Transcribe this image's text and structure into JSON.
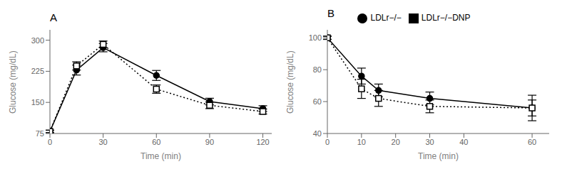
{
  "chart_data": [
    {
      "type": "line",
      "title": "A",
      "x_label": "Time (min)",
      "y_label": "Glucose (mg/dL)",
      "x": [
        0,
        15,
        30,
        60,
        90,
        120
      ],
      "xlim": [
        0,
        125
      ],
      "xticks": [
        0,
        30,
        60,
        90,
        120
      ],
      "ylim": [
        75,
        325
      ],
      "yticks": [
        75,
        150,
        225,
        300
      ],
      "series": [
        {
          "name": "LDLr−/−",
          "color": "#000000",
          "marker": "circle",
          "line_style": "solid",
          "values": [
            80,
            228,
            282,
            215,
            152,
            135
          ],
          "errors": [
            3,
            12,
            10,
            12,
            8,
            7
          ]
        },
        {
          "name": "LDLr−/−DNP",
          "color": "#000000",
          "marker": "open-square",
          "line_style": "dotted",
          "values": [
            80,
            238,
            290,
            182,
            143,
            128
          ],
          "errors": [
            3,
            10,
            8,
            10,
            8,
            6
          ]
        }
      ]
    },
    {
      "type": "line",
      "title": "B",
      "x_label": "Time (min)",
      "y_label": "Glucose (mg/dL)",
      "x": [
        0,
        10,
        15,
        30,
        60
      ],
      "xlim": [
        0,
        65
      ],
      "xticks": [
        0,
        10,
        20,
        30,
        40,
        60
      ],
      "ylim": [
        40,
        105
      ],
      "yticks": [
        40,
        60,
        80,
        100
      ],
      "legend": "top",
      "series": [
        {
          "name": "LDLr−/−",
          "color": "#000000",
          "marker": "circle",
          "line_style": "solid",
          "values": [
            100,
            76,
            67,
            62,
            56
          ],
          "errors": [
            1,
            5,
            4,
            4,
            8
          ]
        },
        {
          "name": "LDLr−/−DNP",
          "color": "#000000",
          "marker": "open-square",
          "line_style": "dotted",
          "values": [
            100,
            68,
            62,
            57,
            56
          ],
          "errors": [
            1,
            6,
            5,
            4,
            5
          ]
        }
      ]
    }
  ]
}
